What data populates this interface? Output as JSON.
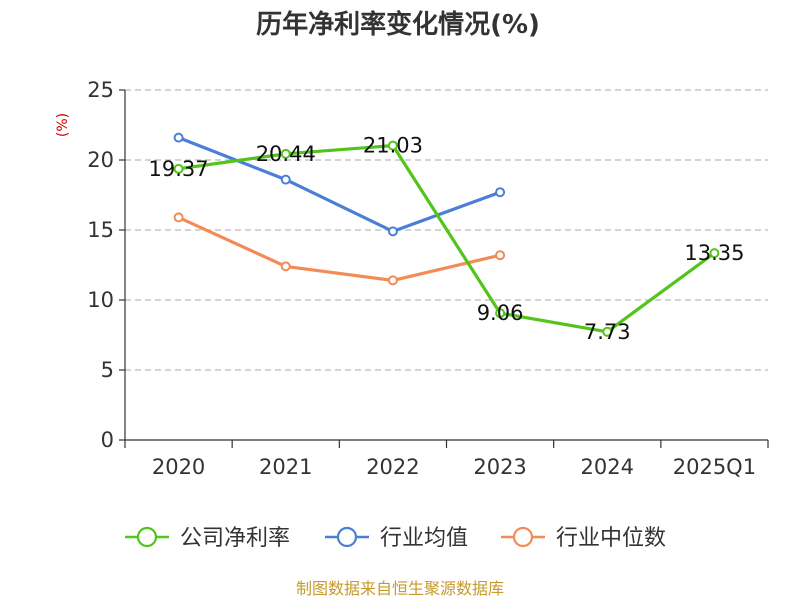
{
  "chart_data": {
    "type": "line",
    "title": "历年净利率变化情况(%)",
    "ylabel": "(%)",
    "ylim": [
      0,
      25
    ],
    "yticks": [
      0,
      5,
      10,
      15,
      20,
      25
    ],
    "categories": [
      "2020",
      "2021",
      "2022",
      "2023",
      "2024",
      "2025Q1"
    ],
    "grid": true,
    "legend_position": "bottom",
    "series": [
      {
        "name": "公司净利率",
        "color": "#52c41a",
        "values": [
          19.37,
          20.44,
          21.03,
          9.06,
          7.73,
          13.35
        ],
        "labels": [
          "19.37",
          "20.44",
          "21.03",
          "9.06",
          "7.73",
          "13.35"
        ]
      },
      {
        "name": "行业均值",
        "color": "#4a7fd6",
        "values": [
          21.6,
          18.6,
          14.9,
          17.7,
          null,
          null
        ]
      },
      {
        "name": "行业中位数",
        "color": "#f28b55",
        "values": [
          15.9,
          12.4,
          11.4,
          13.2,
          null,
          null
        ]
      }
    ],
    "source": "制图数据来自恒生聚源数据库"
  }
}
